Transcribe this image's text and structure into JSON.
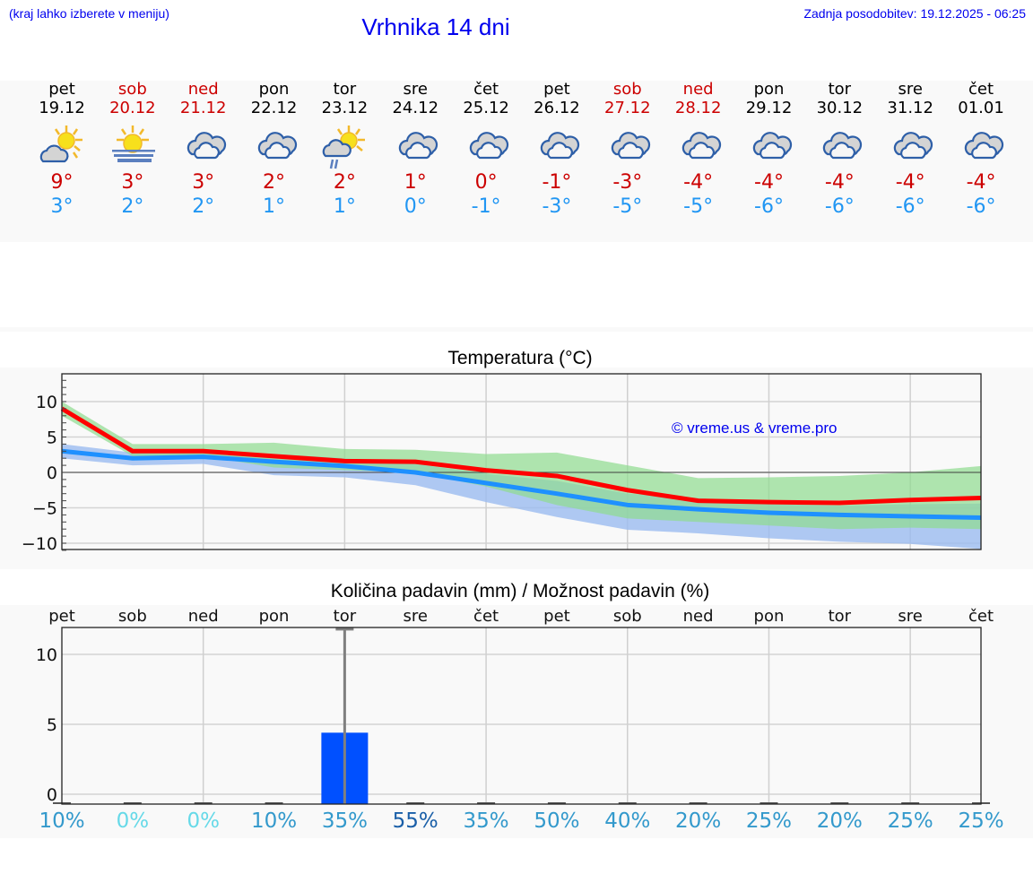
{
  "header": {
    "menu_hint": "(kraj lahko izberete v meniju)",
    "title": "Vrhnika 14 dni",
    "last_update": "Zadnja posodobitev: 19.12.2025 - 06:25"
  },
  "forecast": {
    "days": [
      {
        "day": "pet",
        "date": "19.12",
        "weekend": false,
        "icon": "partly-cloudy-sun-icon",
        "tmax": "9°",
        "tmin": "3°"
      },
      {
        "day": "sob",
        "date": "20.12",
        "weekend": true,
        "icon": "sun-fog-icon",
        "tmax": "3°",
        "tmin": "2°"
      },
      {
        "day": "ned",
        "date": "21.12",
        "weekend": true,
        "icon": "cloudy-icon",
        "tmax": "3°",
        "tmin": "2°"
      },
      {
        "day": "pon",
        "date": "22.12",
        "weekend": false,
        "icon": "cloudy-icon",
        "tmax": "2°",
        "tmin": "1°"
      },
      {
        "day": "tor",
        "date": "23.12",
        "weekend": false,
        "icon": "sun-cloud-rain-icon",
        "tmax": "2°",
        "tmin": "1°"
      },
      {
        "day": "sre",
        "date": "24.12",
        "weekend": false,
        "icon": "cloudy-icon",
        "tmax": "1°",
        "tmin": "0°"
      },
      {
        "day": "čet",
        "date": "25.12",
        "weekend": false,
        "icon": "cloudy-icon",
        "tmax": "0°",
        "tmin": "-1°"
      },
      {
        "day": "pet",
        "date": "26.12",
        "weekend": false,
        "icon": "cloudy-icon",
        "tmax": "-1°",
        "tmin": "-3°"
      },
      {
        "day": "sob",
        "date": "27.12",
        "weekend": true,
        "icon": "cloudy-icon",
        "tmax": "-3°",
        "tmin": "-5°"
      },
      {
        "day": "ned",
        "date": "28.12",
        "weekend": true,
        "icon": "cloudy-icon",
        "tmax": "-4°",
        "tmin": "-5°"
      },
      {
        "day": "pon",
        "date": "29.12",
        "weekend": false,
        "icon": "cloudy-icon",
        "tmax": "-4°",
        "tmin": "-6°"
      },
      {
        "day": "tor",
        "date": "30.12",
        "weekend": false,
        "icon": "cloudy-icon",
        "tmax": "-4°",
        "tmin": "-6°"
      },
      {
        "day": "sre",
        "date": "31.12",
        "weekend": false,
        "icon": "cloudy-icon",
        "tmax": "-4°",
        "tmin": "-6°"
      },
      {
        "day": "čet",
        "date": "01.01",
        "weekend": false,
        "icon": "cloudy-icon",
        "tmax": "-4°",
        "tmin": "-6°"
      }
    ]
  },
  "colors": {
    "link_blue": "#0000ee",
    "tmax_red": "#cc0000",
    "tmin_blue": "#2196f3",
    "line_red": "#ff0000",
    "line_blue": "#1e90ff",
    "band_green": "#a8e6a8",
    "band_blue": "#a9c4f0",
    "band_overlap": "#7cc8a8",
    "bar_blue": "#0050ff",
    "panel_bg": "#f9f9f9"
  },
  "temp_chart": {
    "title": "Temperatura (°C)",
    "watermark": "© vreme.us & vreme.pro"
  },
  "precip_chart": {
    "title": "Količina padavin (mm) / Možnost padavin (%)",
    "day_labels": [
      "pet",
      "sob",
      "ned",
      "pon",
      "tor",
      "sre",
      "čet",
      "pet",
      "sob",
      "ned",
      "pon",
      "tor",
      "sre",
      "čet"
    ],
    "chances": [
      {
        "label": "10%",
        "color": "#3399cc"
      },
      {
        "label": "0%",
        "color": "#66d9e8"
      },
      {
        "label": "0%",
        "color": "#66d9e8"
      },
      {
        "label": "10%",
        "color": "#3399cc"
      },
      {
        "label": "35%",
        "color": "#3399cc"
      },
      {
        "label": "55%",
        "color": "#1a5fa8"
      },
      {
        "label": "35%",
        "color": "#3399cc"
      },
      {
        "label": "50%",
        "color": "#3399cc"
      },
      {
        "label": "40%",
        "color": "#3399cc"
      },
      {
        "label": "20%",
        "color": "#3399cc"
      },
      {
        "label": "25%",
        "color": "#3399cc"
      },
      {
        "label": "20%",
        "color": "#3399cc"
      },
      {
        "label": "25%",
        "color": "#3399cc"
      },
      {
        "label": "25%",
        "color": "#3399cc"
      }
    ]
  },
  "chart_data": [
    {
      "type": "line",
      "title": "Temperatura (°C)",
      "xlabel": "",
      "ylabel": "",
      "x": [
        "19.12",
        "20.12",
        "21.12",
        "22.12",
        "23.12",
        "24.12",
        "25.12",
        "26.12",
        "27.12",
        "28.12",
        "29.12",
        "30.12",
        "31.12",
        "01.01"
      ],
      "ylim": [
        -11,
        14
      ],
      "yticks": [
        -10,
        -5,
        0,
        5,
        10
      ],
      "grid": true,
      "series": [
        {
          "name": "max",
          "color": "#ff0000",
          "values": [
            9,
            3,
            3,
            2.3,
            1.6,
            1.5,
            0.3,
            -0.5,
            -2.5,
            -4,
            -4.2,
            -4.3,
            -3.9,
            -3.6
          ]
        },
        {
          "name": "min",
          "color": "#1e90ff",
          "values": [
            3,
            2,
            2.2,
            1.5,
            0.9,
            0,
            -1.5,
            -3,
            -4.6,
            -5.2,
            -5.7,
            -6,
            -6.2,
            -6.4
          ]
        },
        {
          "name": "max_range_upper",
          "color": "#a8e6a8",
          "values": [
            10,
            4,
            4,
            4.2,
            3.3,
            3.2,
            2.6,
            2.8,
            1,
            -0.8,
            -0.7,
            -0.5,
            0,
            0.9
          ]
        },
        {
          "name": "max_range_lower",
          "color": "#a8e6a8",
          "values": [
            8,
            2.3,
            2.3,
            0.7,
            0.3,
            0,
            -2,
            -4.6,
            -6.5,
            -7,
            -7.5,
            -8,
            -7.8,
            -8
          ]
        },
        {
          "name": "min_range_upper",
          "color": "#a9c4f0",
          "values": [
            4,
            2.8,
            3,
            2.6,
            2,
            1.2,
            -0.2,
            -1.2,
            -3,
            -3.6,
            -4.5,
            -4.7,
            -4.5,
            -4.4
          ]
        },
        {
          "name": "min_range_lower",
          "color": "#a9c4f0",
          "values": [
            2,
            1,
            1.2,
            -0.4,
            -0.7,
            -1.8,
            -4.2,
            -6.3,
            -8.1,
            -8.6,
            -9.3,
            -9.8,
            -10.1,
            -10.8
          ]
        }
      ],
      "annotations": [
        "© vreme.us & vreme.pro"
      ]
    },
    {
      "type": "bar",
      "title": "Količina padavin (mm) / Možnost padavin (%)",
      "categories": [
        "pet",
        "sob",
        "ned",
        "pon",
        "tor",
        "sre",
        "čet",
        "pet",
        "sob",
        "ned",
        "pon",
        "tor",
        "sre",
        "čet"
      ],
      "values": [
        0,
        0,
        0,
        0,
        4.4,
        0,
        0,
        0,
        0,
        0,
        0,
        0,
        0,
        0
      ],
      "error_max": [
        0,
        0,
        0,
        0,
        11.8,
        0,
        0,
        0,
        0,
        0,
        0,
        0,
        0,
        0
      ],
      "chance_percent": [
        10,
        0,
        0,
        10,
        35,
        55,
        35,
        50,
        40,
        20,
        25,
        20,
        25,
        25
      ],
      "ylim": [
        -0.7,
        12.5
      ],
      "yticks": [
        0,
        5,
        10
      ],
      "xlabel": "",
      "ylabel": "",
      "grid": true
    }
  ]
}
